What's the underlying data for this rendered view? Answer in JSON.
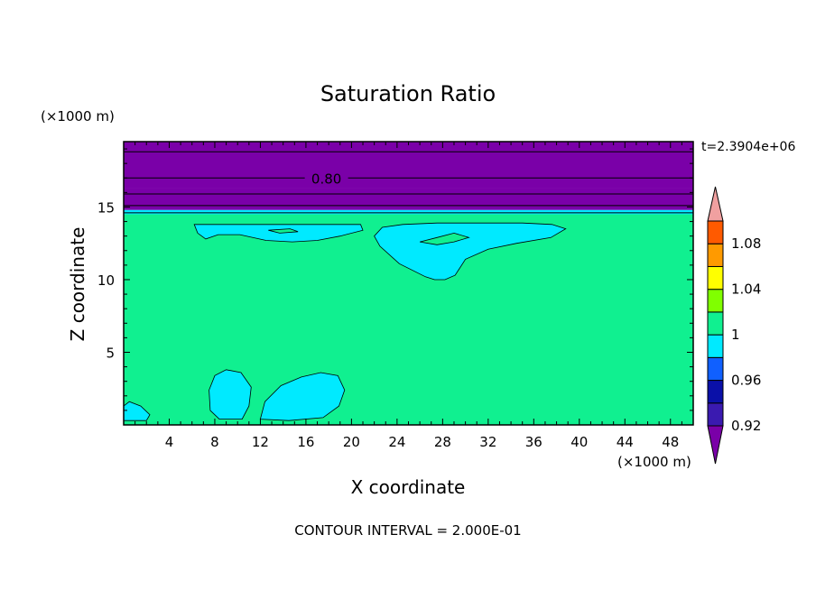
{
  "chart_data": {
    "type": "heatmap",
    "title": "Saturation Ratio",
    "xlabel": "X coordinate",
    "ylabel": "Z coordinate",
    "x_unit": "(×1000 m)",
    "y_unit": "(×1000 m)",
    "time_label": "t=2.3904e+06",
    "footer": "CONTOUR INTERVAL = 2.000E-01",
    "contour_label": "0.80",
    "xlim": [
      0,
      50
    ],
    "ylim": [
      0,
      19.5
    ],
    "x_ticks": [
      4,
      8,
      12,
      16,
      20,
      24,
      28,
      32,
      36,
      40,
      44,
      48
    ],
    "y_ticks": [
      5,
      10,
      15
    ],
    "contour_lines_z": [
      18.8,
      17.0,
      15.9,
      15.1,
      14.6
    ],
    "bands": [
      {
        "from": 0.0,
        "to": 14.5,
        "value": 1.0
      },
      {
        "from": 14.5,
        "to": 14.8,
        "value": 0.98
      },
      {
        "from": 14.8,
        "to": 15.9,
        "value": 0.9
      },
      {
        "from": 15.9,
        "to": 16.3,
        "value": 0.91
      },
      {
        "from": 16.3,
        "to": 19.5,
        "value": 0.9
      }
    ],
    "colorbar": {
      "levels": [
        0.92,
        0.94,
        0.96,
        0.98,
        1.0,
        1.02,
        1.04,
        1.06,
        1.08,
        1.1
      ],
      "labels": [
        "0.92",
        "0.96",
        "1",
        "1.04",
        "1.08"
      ],
      "label_levels": [
        0.92,
        0.96,
        1.0,
        1.04,
        1.08
      ],
      "colors": [
        "#7a00a8",
        "#3a1ab0",
        "#0a10a8",
        "#1060ff",
        "#00eaff",
        "#10f090",
        "#80ff00",
        "#ffff00",
        "#ff9a00",
        "#ff5a00",
        "#ff2a2a",
        "#f0a0a0"
      ]
    },
    "regions": [
      {
        "value": 0.98,
        "points": [
          [
            7.6,
            1.0
          ],
          [
            7.5,
            2.4
          ],
          [
            8.0,
            3.4
          ],
          [
            9.0,
            3.8
          ],
          [
            10.3,
            3.6
          ],
          [
            11.2,
            2.6
          ],
          [
            11.0,
            1.3
          ],
          [
            10.4,
            0.4
          ],
          [
            8.4,
            0.4
          ]
        ]
      },
      {
        "value": 0.98,
        "points": [
          [
            12.0,
            0.4
          ],
          [
            12.4,
            1.6
          ],
          [
            13.8,
            2.7
          ],
          [
            15.6,
            3.3
          ],
          [
            17.3,
            3.6
          ],
          [
            18.8,
            3.4
          ],
          [
            19.4,
            2.4
          ],
          [
            18.9,
            1.3
          ],
          [
            17.5,
            0.5
          ],
          [
            14.5,
            0.3
          ]
        ]
      },
      {
        "value": 0.98,
        "points": [
          [
            0.0,
            0.3
          ],
          [
            0.0,
            1.3
          ],
          [
            0.5,
            1.6
          ],
          [
            1.5,
            1.3
          ],
          [
            2.3,
            0.7
          ],
          [
            2.0,
            0.3
          ]
        ]
      },
      {
        "value": 0.98,
        "points": [
          [
            27.3,
            10.0
          ],
          [
            26.5,
            10.2
          ],
          [
            24.2,
            11.1
          ],
          [
            22.5,
            12.3
          ],
          [
            22.0,
            13.0
          ],
          [
            22.7,
            13.6
          ],
          [
            24.5,
            13.8
          ],
          [
            27.5,
            13.9
          ],
          [
            31.0,
            13.9
          ],
          [
            35.0,
            13.9
          ],
          [
            37.6,
            13.8
          ],
          [
            38.8,
            13.5
          ],
          [
            37.5,
            12.9
          ],
          [
            34.5,
            12.5
          ],
          [
            32.0,
            12.1
          ],
          [
            30.0,
            11.4
          ],
          [
            29.1,
            10.3
          ],
          [
            28.2,
            10.0
          ]
        ]
      },
      {
        "value": 0.98,
        "points": [
          [
            6.2,
            13.8
          ],
          [
            6.5,
            13.2
          ],
          [
            7.2,
            12.8
          ],
          [
            8.3,
            13.1
          ],
          [
            10.2,
            13.1
          ],
          [
            12.5,
            12.7
          ],
          [
            14.8,
            12.6
          ],
          [
            17.0,
            12.7
          ],
          [
            19.0,
            13.0
          ],
          [
            21.0,
            13.4
          ],
          [
            20.8,
            13.8
          ]
        ]
      },
      {
        "value": 1.0,
        "points": [
          [
            26.0,
            12.6
          ],
          [
            27.5,
            12.9
          ],
          [
            29.0,
            13.2
          ],
          [
            30.3,
            12.9
          ],
          [
            29.0,
            12.6
          ],
          [
            27.5,
            12.4
          ]
        ]
      },
      {
        "value": 1.0,
        "points": [
          [
            12.7,
            13.4
          ],
          [
            14.6,
            13.5
          ],
          [
            15.3,
            13.3
          ],
          [
            13.7,
            13.2
          ]
        ]
      }
    ]
  }
}
